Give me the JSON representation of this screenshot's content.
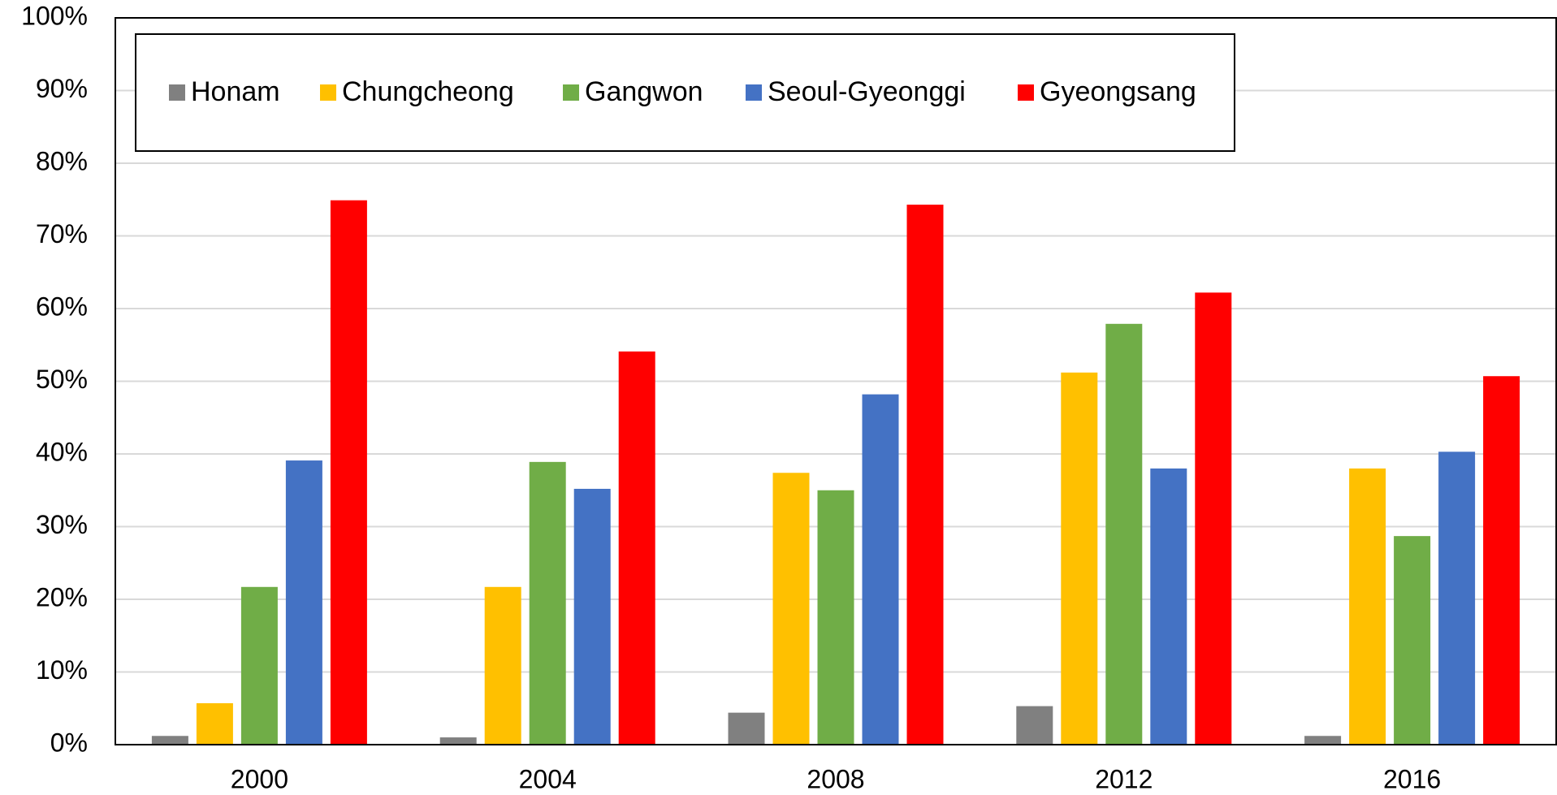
{
  "chart_data": {
    "type": "bar",
    "categories": [
      "2000",
      "2004",
      "2008",
      "2012",
      "2016"
    ],
    "series": [
      {
        "name": "Honam",
        "color": "#808080",
        "values": [
          1.2,
          1.0,
          4.4,
          5.3,
          1.2
        ]
      },
      {
        "name": "Chungcheong",
        "color": "#ffc000",
        "values": [
          5.7,
          21.7,
          37.4,
          51.2,
          38.0
        ]
      },
      {
        "name": "Gangwon",
        "color": "#70ad47",
        "values": [
          21.7,
          38.9,
          35.0,
          57.9,
          28.7
        ]
      },
      {
        "name": "Seoul-Gyeonggi",
        "color": "#4472c4",
        "values": [
          39.1,
          35.2,
          48.2,
          38.0,
          40.3
        ]
      },
      {
        "name": "Gyeongsang",
        "color": "#ff0000",
        "values": [
          74.9,
          54.1,
          74.3,
          62.2,
          50.7
        ]
      }
    ],
    "ylim": [
      0,
      100
    ],
    "yticks": [
      {
        "value": 0,
        "label": "0%"
      },
      {
        "value": 10,
        "label": "10%"
      },
      {
        "value": 20,
        "label": "20%"
      },
      {
        "value": 30,
        "label": "30%"
      },
      {
        "value": 40,
        "label": "40%"
      },
      {
        "value": 50,
        "label": "50%"
      },
      {
        "value": 60,
        "label": "60%"
      },
      {
        "value": 70,
        "label": "70%"
      },
      {
        "value": 80,
        "label": "80%"
      },
      {
        "value": 90,
        "label": "90%"
      },
      {
        "value": 100,
        "label": "100%"
      }
    ],
    "grid": true,
    "legend": "top-left"
  }
}
